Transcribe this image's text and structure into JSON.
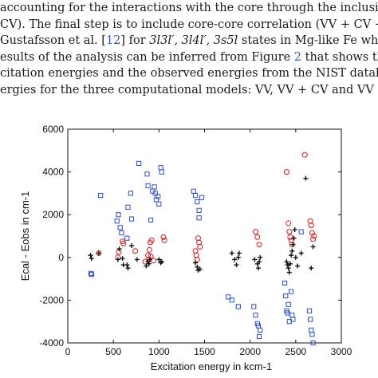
{
  "paragraph": {
    "line1": "accounting for the interactions with the core through the inclusio",
    "line2": "CV). The final step is to include core-core correlation (VV + CV + ",
    "line3": {
      "prefix": "Gustafsson et al. [",
      "ref": "12",
      "middle": "] for ",
      "states": "3l3l′, 3l4l′, 3s5l",
      "suffix": " states in Mg-like Fe where"
    },
    "line4": {
      "prefix": "esults of the analysis can be inferred from Figure ",
      "ref": "2",
      "suffix": " that shows the di"
    },
    "line5": "citation energies and the observed energies from the NIST databas",
    "line6": "ergies for the three computational models: VV, VV + CV and VV + "
  },
  "chart_data": {
    "type": "scatter",
    "xlabel": "Excitation energy in kcm-1",
    "ylabel": "Ecal - Eobs in cm-1",
    "xlim": [
      0,
      3000
    ],
    "ylim": [
      -4000,
      6000
    ],
    "xticks": [
      "0",
      "500",
      "1000",
      "1500",
      "2000",
      "2500",
      "3000"
    ],
    "yticks": [
      "6000",
      "4000",
      "2000",
      "0",
      "-2000",
      "-4000"
    ],
    "grid": false,
    "colors": {
      "blue_squares": "#2b4fd1",
      "red_circles": "#e01a1a",
      "black_plus": "#111111"
    },
    "series": [
      {
        "marker": "square",
        "color": "#2b4fd1",
        "points": [
          [
            255,
            -750
          ],
          [
            262,
            -800
          ],
          [
            360,
            2900
          ],
          [
            540,
            1700
          ],
          [
            555,
            2000
          ],
          [
            575,
            1400
          ],
          [
            590,
            1150
          ],
          [
            650,
            900
          ],
          [
            660,
            2350
          ],
          [
            690,
            3000
          ],
          [
            700,
            1800
          ],
          [
            780,
            4400
          ],
          [
            870,
            3900
          ],
          [
            880,
            3350
          ],
          [
            910,
            1750
          ],
          [
            930,
            3100
          ],
          [
            950,
            3300
          ],
          [
            960,
            3000
          ],
          [
            970,
            2700
          ],
          [
            990,
            2850
          ],
          [
            1000,
            2500
          ],
          [
            1020,
            4200
          ],
          [
            1030,
            4000
          ],
          [
            1380,
            3100
          ],
          [
            1400,
            2900
          ],
          [
            1420,
            2600
          ],
          [
            1440,
            1850
          ],
          [
            1440,
            2200
          ],
          [
            1470,
            2800
          ],
          [
            1760,
            -1850
          ],
          [
            1800,
            -2000
          ],
          [
            1870,
            -2300
          ],
          [
            2040,
            -2300
          ],
          [
            2060,
            -2700
          ],
          [
            2080,
            -3100
          ],
          [
            2090,
            -3200
          ],
          [
            2100,
            -3700
          ],
          [
            2110,
            -3400
          ],
          [
            2380,
            -1200
          ],
          [
            2390,
            -1800
          ],
          [
            2400,
            -2500
          ],
          [
            2410,
            -2600
          ],
          [
            2420,
            -2200
          ],
          [
            2430,
            -3000
          ],
          [
            2450,
            -1600
          ],
          [
            2460,
            -2700
          ],
          [
            2470,
            -2900
          ],
          [
            2560,
            1200
          ],
          [
            2650,
            -2500
          ],
          [
            2660,
            -2900
          ],
          [
            2670,
            -3400
          ],
          [
            2680,
            -3600
          ],
          [
            2690,
            -4000
          ]
        ]
      },
      {
        "marker": "circle",
        "color": "#e01a1a",
        "points": [
          [
            340,
            200
          ],
          [
            550,
            0
          ],
          [
            560,
            250
          ],
          [
            600,
            750
          ],
          [
            610,
            650
          ],
          [
            740,
            300
          ],
          [
            850,
            -200
          ],
          [
            880,
            100
          ],
          [
            890,
            -100
          ],
          [
            895,
            350
          ],
          [
            905,
            700
          ],
          [
            910,
            50
          ],
          [
            920,
            800
          ],
          [
            940,
            -150
          ],
          [
            1050,
            950
          ],
          [
            1060,
            800
          ],
          [
            1400,
            300
          ],
          [
            1410,
            100
          ],
          [
            1420,
            -100
          ],
          [
            1430,
            900
          ],
          [
            1440,
            700
          ],
          [
            1450,
            500
          ],
          [
            2060,
            1200
          ],
          [
            2080,
            950
          ],
          [
            2100,
            600
          ],
          [
            2400,
            4000
          ],
          [
            2420,
            1600
          ],
          [
            2430,
            1200
          ],
          [
            2440,
            950
          ],
          [
            2450,
            800
          ],
          [
            2460,
            600
          ],
          [
            2600,
            4800
          ],
          [
            2660,
            1700
          ],
          [
            2670,
            1500
          ],
          [
            2680,
            1150
          ],
          [
            2690,
            850
          ],
          [
            2700,
            1000
          ]
        ]
      },
      {
        "marker": "plus",
        "color": "#111111",
        "points": [
          [
            250,
            100
          ],
          [
            260,
            -50
          ],
          [
            340,
            200
          ],
          [
            550,
            -100
          ],
          [
            565,
            400
          ],
          [
            600,
            -50
          ],
          [
            610,
            -350
          ],
          [
            650,
            -350
          ],
          [
            660,
            -500
          ],
          [
            700,
            550
          ],
          [
            760,
            -100
          ],
          [
            860,
            -400
          ],
          [
            880,
            -200
          ],
          [
            890,
            -300
          ],
          [
            900,
            -100
          ],
          [
            1000,
            -100
          ],
          [
            1020,
            -250
          ],
          [
            1030,
            -200
          ],
          [
            1400,
            -250
          ],
          [
            1420,
            -450
          ],
          [
            1430,
            -600
          ],
          [
            1450,
            -550
          ],
          [
            1800,
            200
          ],
          [
            1830,
            -100
          ],
          [
            1850,
            -350
          ],
          [
            1870,
            0
          ],
          [
            1880,
            200
          ],
          [
            2050,
            -100
          ],
          [
            2080,
            -300
          ],
          [
            2090,
            -500
          ],
          [
            2100,
            -200
          ],
          [
            2110,
            0
          ],
          [
            2400,
            -200
          ],
          [
            2410,
            -350
          ],
          [
            2420,
            -500
          ],
          [
            2430,
            -700
          ],
          [
            2440,
            -300
          ],
          [
            2450,
            100
          ],
          [
            2460,
            300
          ],
          [
            2470,
            600
          ],
          [
            2480,
            900
          ],
          [
            2490,
            1300
          ],
          [
            2500,
            0
          ],
          [
            2520,
            -400
          ],
          [
            2560,
            200
          ],
          [
            2610,
            3700
          ],
          [
            2670,
            -500
          ],
          [
            2690,
            500
          ]
        ]
      }
    ]
  }
}
